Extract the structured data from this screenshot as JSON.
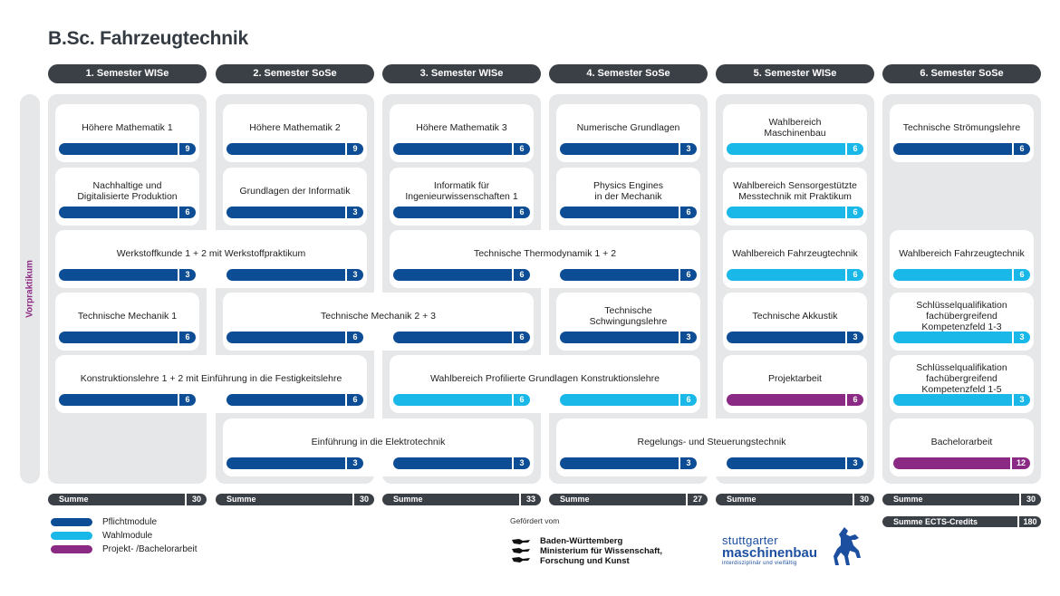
{
  "title": "B.Sc. Fahrzeugtechnik",
  "sidebar_label": "Vorpraktikum",
  "semesters": [
    {
      "label": "1. Semester  WISe"
    },
    {
      "label": "2. Semester  SoSe"
    },
    {
      "label": "3. Semester  WISe"
    },
    {
      "label": "4. Semester  SoSe"
    },
    {
      "label": "5. Semester  WISe"
    },
    {
      "label": "6. Semester  SoSe"
    }
  ],
  "module_types": {
    "pflicht": {
      "label": "Pflichtmodule",
      "color": "#0d4d95"
    },
    "wahl": {
      "label": "Wahlmodule",
      "color": "#19b8e8"
    },
    "projekt": {
      "label": "Projekt- /Bachelorarbeit",
      "color": "#8a2a84"
    }
  },
  "modules": [
    {
      "name": "Höhere Mathematik 1",
      "semesters": [
        1
      ],
      "credits": "9",
      "type": "pflicht"
    },
    {
      "name": "Höhere Mathematik 2",
      "semesters": [
        2
      ],
      "credits": "9",
      "type": "pflicht"
    },
    {
      "name": "Höhere Mathematik 3",
      "semesters": [
        3
      ],
      "credits": "6",
      "type": "pflicht"
    },
    {
      "name": "Numerische Grundlagen",
      "semesters": [
        4
      ],
      "credits": "3",
      "type": "pflicht"
    },
    {
      "name": "Wahlbereich\nMaschinenbau",
      "semesters": [
        5
      ],
      "credits": "6",
      "type": "wahl"
    },
    {
      "name": "Technische Strömungslehre",
      "semesters": [
        6
      ],
      "credits": "6",
      "type": "pflicht"
    },
    {
      "name": "Nachhaltige und\nDigitalisierte Produktion",
      "semesters": [
        1
      ],
      "credits": "6",
      "type": "pflicht"
    },
    {
      "name": "Grundlagen der Informatik",
      "semesters": [
        2
      ],
      "credits": "3",
      "type": "pflicht"
    },
    {
      "name": "Informatik für\nIngenieurwissenschaften 1",
      "semesters": [
        3
      ],
      "credits": "6",
      "type": "pflicht"
    },
    {
      "name": "Physics Engines\nin der Mechanik",
      "semesters": [
        4
      ],
      "credits": "6",
      "type": "pflicht"
    },
    {
      "name": "Wahlbereich Sensorgestützte\nMesstechnik mit Praktikum",
      "semesters": [
        5
      ],
      "credits": "6",
      "type": "wahl"
    },
    {
      "name": "Werkstoffkunde 1 + 2 mit Werkstoffpraktikum",
      "semesters": [
        1,
        2
      ],
      "credits": [
        "3",
        "3"
      ],
      "type": "pflicht"
    },
    {
      "name": "Technische Thermodynamik 1 + 2",
      "semesters": [
        3,
        4
      ],
      "credits": [
        "6",
        "6"
      ],
      "type": "pflicht"
    },
    {
      "name": "Wahlbereich Fahrzeugtechnik",
      "semesters": [
        5
      ],
      "credits": "6",
      "type": "wahl"
    },
    {
      "name": "Wahlbereich Fahrzeugtechnik",
      "semesters": [
        6
      ],
      "credits": "6",
      "type": "wahl"
    },
    {
      "name": "Technische Mechanik 1",
      "semesters": [
        1
      ],
      "credits": "6",
      "type": "pflicht"
    },
    {
      "name": "Technische Mechanik 2 + 3",
      "semesters": [
        2,
        3
      ],
      "credits": [
        "6",
        "6"
      ],
      "type": "pflicht"
    },
    {
      "name": "Technische\nSchwingungslehre",
      "semesters": [
        4
      ],
      "credits": "3",
      "type": "pflicht"
    },
    {
      "name": "Technische Akkustik",
      "semesters": [
        5
      ],
      "credits": "3",
      "type": "pflicht"
    },
    {
      "name": "Schlüsselqualifikation\nfachübergreifend\nKompetenzfeld 1-3",
      "semesters": [
        6
      ],
      "credits": "3",
      "type": "wahl"
    },
    {
      "name": "Konstruktionslehre 1 + 2 mit Einführung in die Festigkeitslehre",
      "semesters": [
        1,
        2
      ],
      "credits": [
        "6",
        "6"
      ],
      "type": "pflicht"
    },
    {
      "name": "Wahlbereich Profilierte Grundlagen Konstruktionslehre",
      "semesters": [
        3,
        4
      ],
      "credits": [
        "6",
        "6"
      ],
      "type": "wahl"
    },
    {
      "name": "Projektarbeit",
      "semesters": [
        5
      ],
      "credits": "6",
      "type": "projekt"
    },
    {
      "name": "Schlüsselqualifikation\nfachübergreifend\nKompetenzfeld 1-5",
      "semesters": [
        6
      ],
      "credits": "3",
      "type": "wahl"
    },
    {
      "name": "Einführung in die Elektrotechnik",
      "semesters": [
        2,
        3
      ],
      "credits": [
        "3",
        "3"
      ],
      "type": "pflicht"
    },
    {
      "name": "Regelungs-  und Steuerungstechnik",
      "semesters": [
        4,
        5
      ],
      "credits": [
        "3",
        "3"
      ],
      "type": "pflicht"
    },
    {
      "name": "Bachelorarbeit",
      "semesters": [
        6
      ],
      "credits": "12",
      "type": "projekt"
    }
  ],
  "sums": [
    {
      "label": "Summe",
      "value": "30"
    },
    {
      "label": "Summe",
      "value": "30"
    },
    {
      "label": "Summe",
      "value": "33"
    },
    {
      "label": "Summe",
      "value": "27"
    },
    {
      "label": "Summe",
      "value": "30"
    },
    {
      "label": "Summe",
      "value": "30"
    }
  ],
  "total": {
    "label": "Summe ECTS-Credits",
    "value": "180"
  },
  "funding": {
    "label": "Gefördert vom",
    "line1": "Baden-Württemberg",
    "line2": "Ministerium für Wissenschaft,",
    "line3": "Forschung und Kunst"
  },
  "logo": {
    "line1": "stuttgarter",
    "line2": "maschinenbau",
    "line3": "interdisziplinär und vielfältig"
  }
}
